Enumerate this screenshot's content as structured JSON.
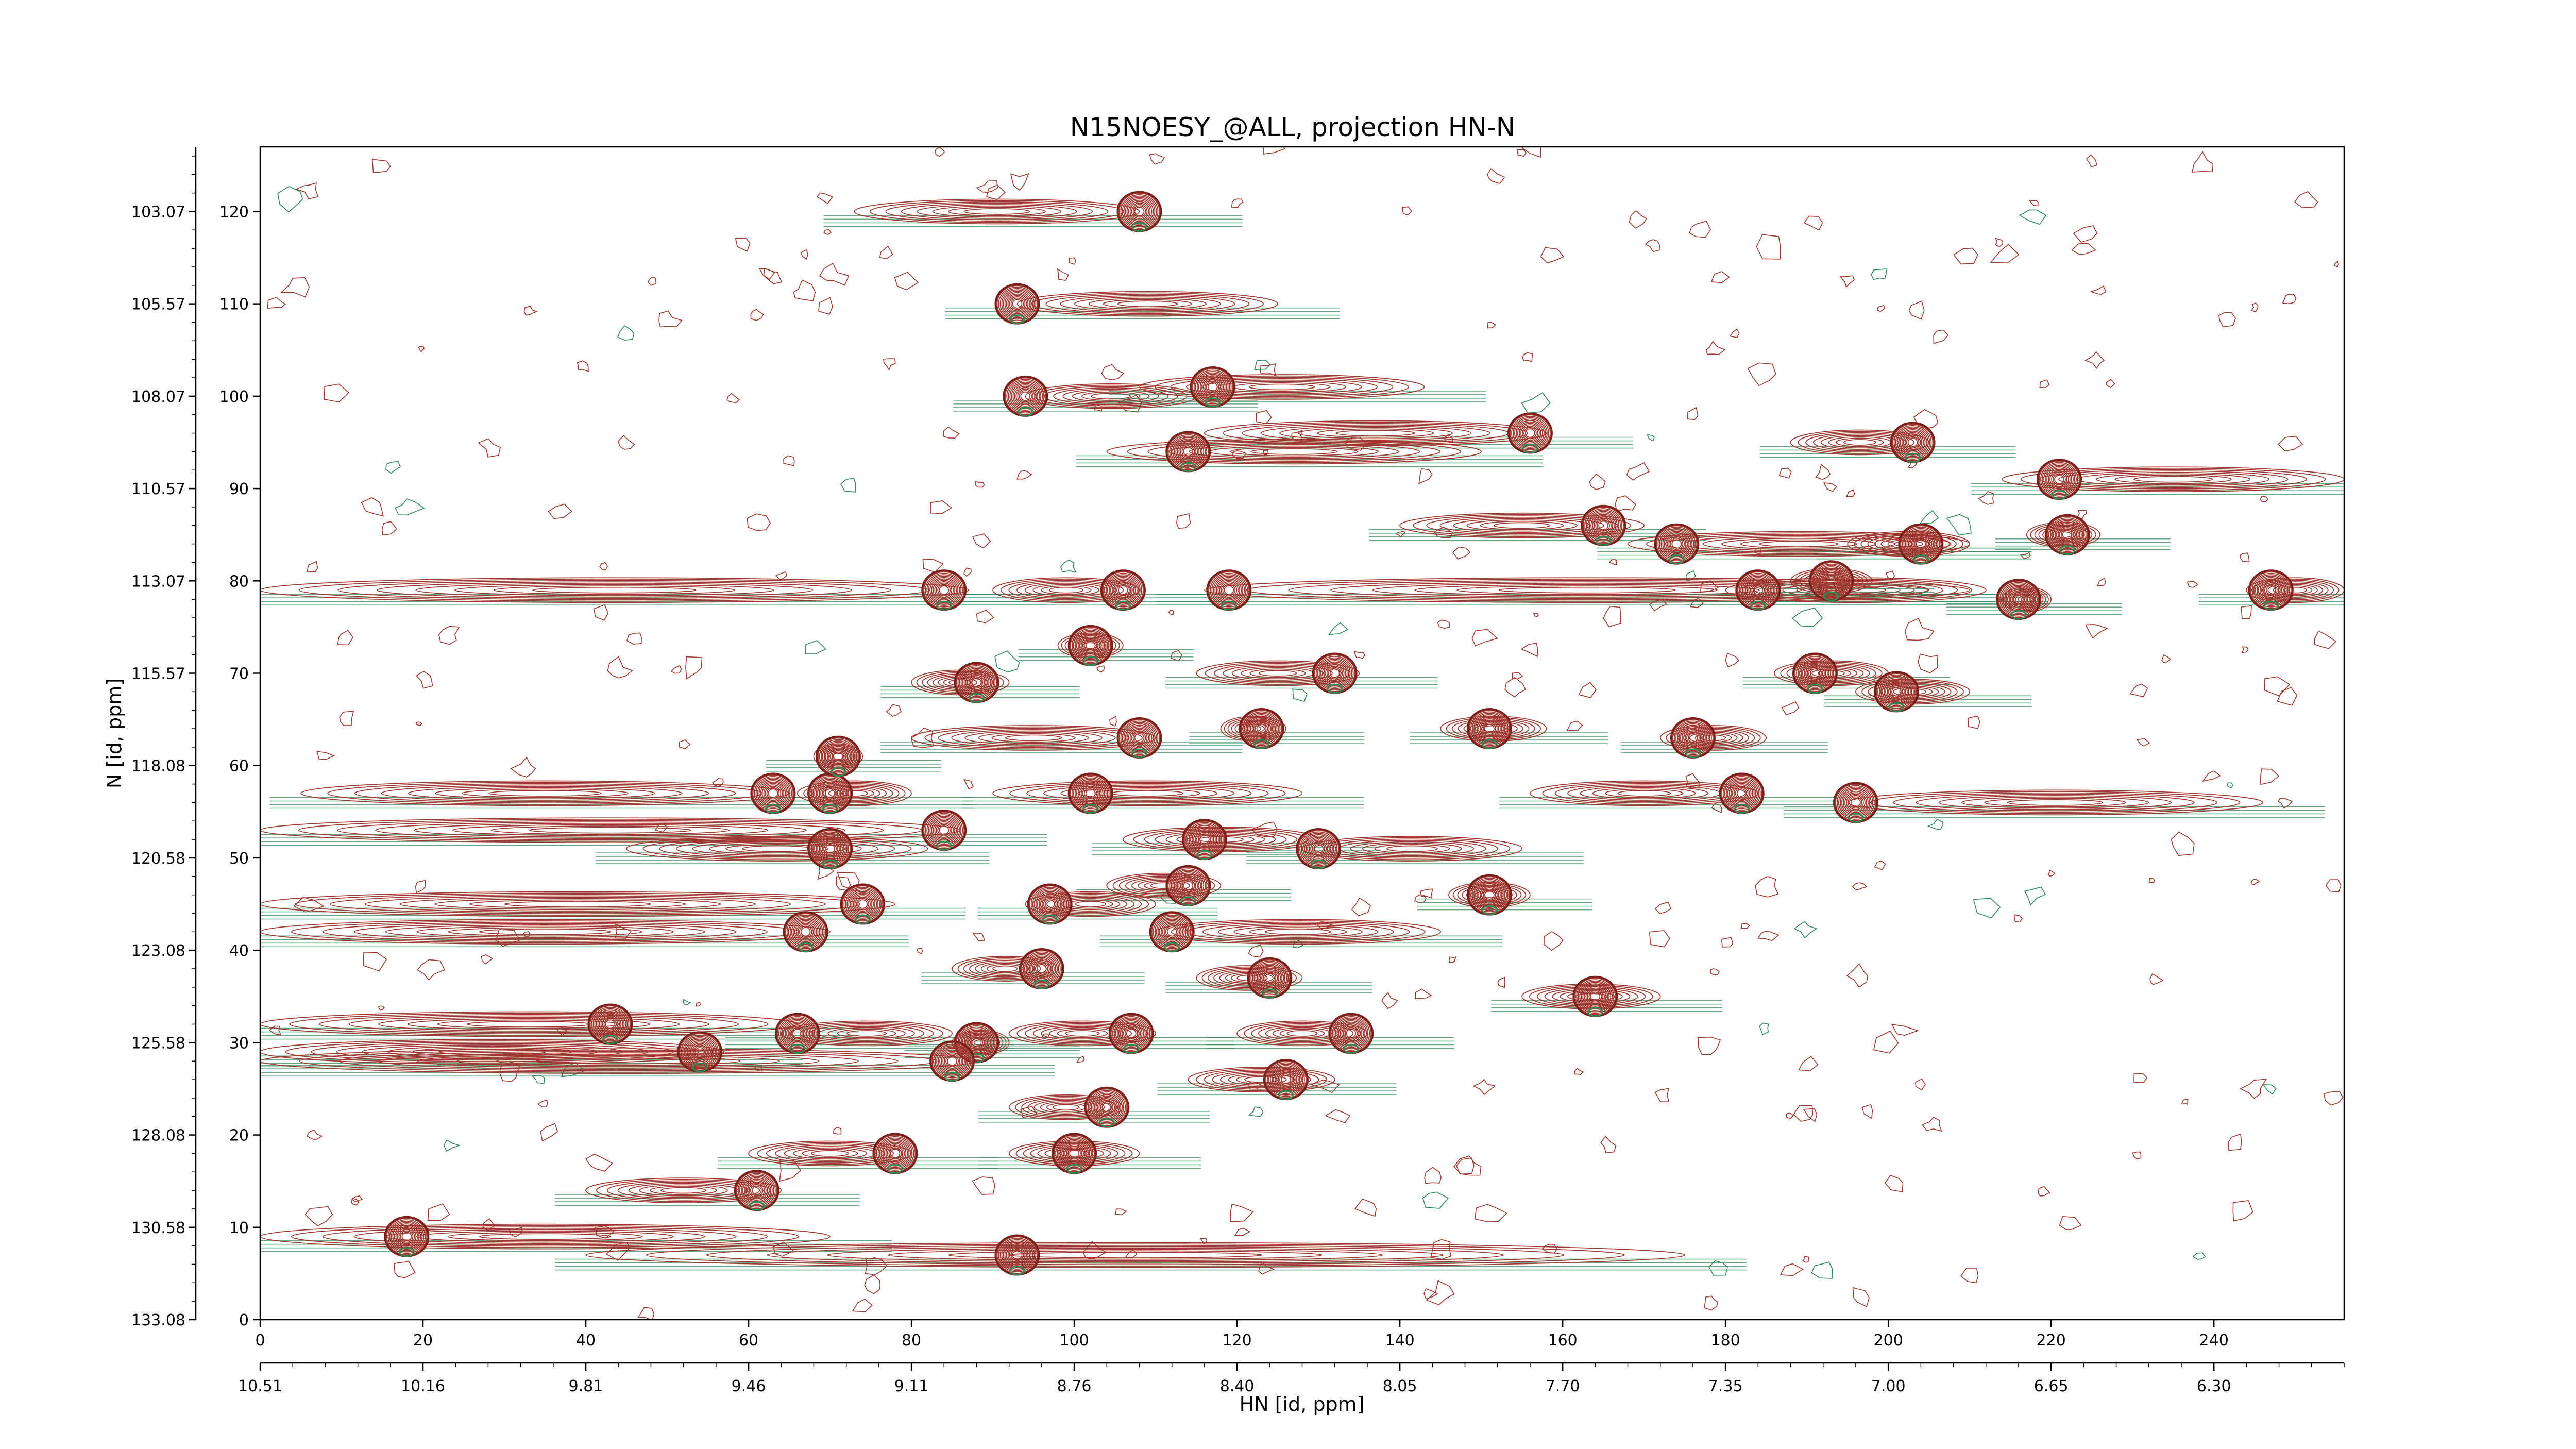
{
  "chart_data": {
    "type": "contour",
    "title": "N15NOESY_@ALL, projection HN-N",
    "xlabel": "HN [id, ppm]",
    "ylabel": "N [id, ppm]",
    "xlim": [
      0,
      256
    ],
    "ylim": [
      0,
      127
    ],
    "grid": false,
    "legend": "none",
    "colors": {
      "positive": "#a0372f",
      "negative": "#2e8b57"
    },
    "x_ticks_points": [
      "0",
      "20",
      "40",
      "60",
      "80",
      "100",
      "120",
      "140",
      "160",
      "180",
      "200",
      "220",
      "240"
    ],
    "x_ticks_ppm": [
      "10.51",
      "10.16",
      "9.81",
      "9.46",
      "9.11",
      "8.76",
      "8.40",
      "8.05",
      "7.70",
      "7.35",
      "7.00",
      "6.65",
      "6.30"
    ],
    "y_ticks_points": [
      "0",
      "10",
      "20",
      "30",
      "40",
      "50",
      "60",
      "70",
      "80",
      "90",
      "100",
      "110",
      "120"
    ],
    "y_ticks_ppm": [
      "133.08",
      "130.58",
      "128.08",
      "125.58",
      "123.08",
      "120.58",
      "118.08",
      "115.57",
      "113.07",
      "110.57",
      "108.07",
      "105.57",
      "103.07"
    ],
    "peaks": [
      {
        "x": 108,
        "y": 120,
        "x0": 73,
        "x1": 108
      },
      {
        "x": 93,
        "y": 110,
        "x0": 93,
        "x1": 125
      },
      {
        "x": 94,
        "y": 100,
        "x0": 94,
        "x1": 115
      },
      {
        "x": 117,
        "y": 101,
        "x0": 108,
        "x1": 143
      },
      {
        "x": 156,
        "y": 96,
        "x0": 116,
        "x1": 158
      },
      {
        "x": 114,
        "y": 94,
        "x0": 104,
        "x1": 150
      },
      {
        "x": 203,
        "y": 95,
        "x0": 188,
        "x1": 205
      },
      {
        "x": 221,
        "y": 91,
        "x0": 214,
        "x1": 256
      },
      {
        "x": 222,
        "y": 85,
        "x0": 217,
        "x1": 226
      },
      {
        "x": 165,
        "y": 86,
        "x0": 140,
        "x1": 170
      },
      {
        "x": 174,
        "y": 84,
        "x0": 168,
        "x1": 210
      },
      {
        "x": 204,
        "y": 84,
        "x0": 195,
        "x1": 210
      },
      {
        "x": 84,
        "y": 79,
        "x0": 0,
        "x1": 87
      },
      {
        "x": 106,
        "y": 79,
        "x0": 90,
        "x1": 108
      },
      {
        "x": 119,
        "y": 79,
        "x0": 116,
        "x1": 210
      },
      {
        "x": 184,
        "y": 79,
        "x0": 180,
        "x1": 212
      },
      {
        "x": 193,
        "y": 80,
        "x0": 188,
        "x1": 198
      },
      {
        "x": 216,
        "y": 78,
        "x0": 214,
        "x1": 220
      },
      {
        "x": 247,
        "y": 79,
        "x0": 244,
        "x1": 256
      },
      {
        "x": 102,
        "y": 73,
        "x0": 98,
        "x1": 106
      },
      {
        "x": 88,
        "y": 69,
        "x0": 80,
        "x1": 92
      },
      {
        "x": 132,
        "y": 70,
        "x0": 115,
        "x1": 135
      },
      {
        "x": 191,
        "y": 70,
        "x0": 186,
        "x1": 200
      },
      {
        "x": 201,
        "y": 68,
        "x0": 196,
        "x1": 210
      },
      {
        "x": 123,
        "y": 64,
        "x0": 118,
        "x1": 126
      },
      {
        "x": 108,
        "y": 63,
        "x0": 80,
        "x1": 110
      },
      {
        "x": 151,
        "y": 64,
        "x0": 145,
        "x1": 158
      },
      {
        "x": 176,
        "y": 63,
        "x0": 172,
        "x1": 185
      },
      {
        "x": 63,
        "y": 57,
        "x0": 5,
        "x1": 65
      },
      {
        "x": 70,
        "y": 57,
        "x0": 66,
        "x1": 80
      },
      {
        "x": 71,
        "y": 61,
        "x0": 68,
        "x1": 74
      },
      {
        "x": 102,
        "y": 57,
        "x0": 90,
        "x1": 128
      },
      {
        "x": 182,
        "y": 57,
        "x0": 156,
        "x1": 184
      },
      {
        "x": 196,
        "y": 56,
        "x0": 195,
        "x1": 246
      },
      {
        "x": 84,
        "y": 53,
        "x0": 0,
        "x1": 86
      },
      {
        "x": 70,
        "y": 51,
        "x0": 45,
        "x1": 82
      },
      {
        "x": 116,
        "y": 52,
        "x0": 106,
        "x1": 130
      },
      {
        "x": 130,
        "y": 51,
        "x0": 128,
        "x1": 155
      },
      {
        "x": 114,
        "y": 47,
        "x0": 104,
        "x1": 118
      },
      {
        "x": 74,
        "y": 45,
        "x0": 0,
        "x1": 78
      },
      {
        "x": 97,
        "y": 45,
        "x0": 94,
        "x1": 110
      },
      {
        "x": 151,
        "y": 46,
        "x0": 146,
        "x1": 156
      },
      {
        "x": 67,
        "y": 42,
        "x0": 0,
        "x1": 70
      },
      {
        "x": 112,
        "y": 42,
        "x0": 110,
        "x1": 145
      },
      {
        "x": 96,
        "y": 38,
        "x0": 85,
        "x1": 98
      },
      {
        "x": 124,
        "y": 37,
        "x0": 115,
        "x1": 128
      },
      {
        "x": 164,
        "y": 35,
        "x0": 155,
        "x1": 172
      },
      {
        "x": 43,
        "y": 32,
        "x0": 0,
        "x1": 66
      },
      {
        "x": 54,
        "y": 29,
        "x0": 0,
        "x1": 57
      },
      {
        "x": 66,
        "y": 31,
        "x0": 64,
        "x1": 85
      },
      {
        "x": 88,
        "y": 30,
        "x0": 85,
        "x1": 92
      },
      {
        "x": 107,
        "y": 31,
        "x0": 92,
        "x1": 110
      },
      {
        "x": 134,
        "y": 31,
        "x0": 120,
        "x1": 136
      },
      {
        "x": 85,
        "y": 28,
        "x0": 0,
        "x1": 88
      },
      {
        "x": 126,
        "y": 26,
        "x0": 114,
        "x1": 132
      },
      {
        "x": 104,
        "y": 23,
        "x0": 92,
        "x1": 106
      },
      {
        "x": 100,
        "y": 18,
        "x0": 92,
        "x1": 108
      },
      {
        "x": 78,
        "y": 18,
        "x0": 60,
        "x1": 80
      },
      {
        "x": 61,
        "y": 14,
        "x0": 40,
        "x1": 64
      },
      {
        "x": 18,
        "y": 9,
        "x0": 0,
        "x1": 70
      },
      {
        "x": 93,
        "y": 7,
        "x0": 40,
        "x1": 175
      }
    ]
  }
}
